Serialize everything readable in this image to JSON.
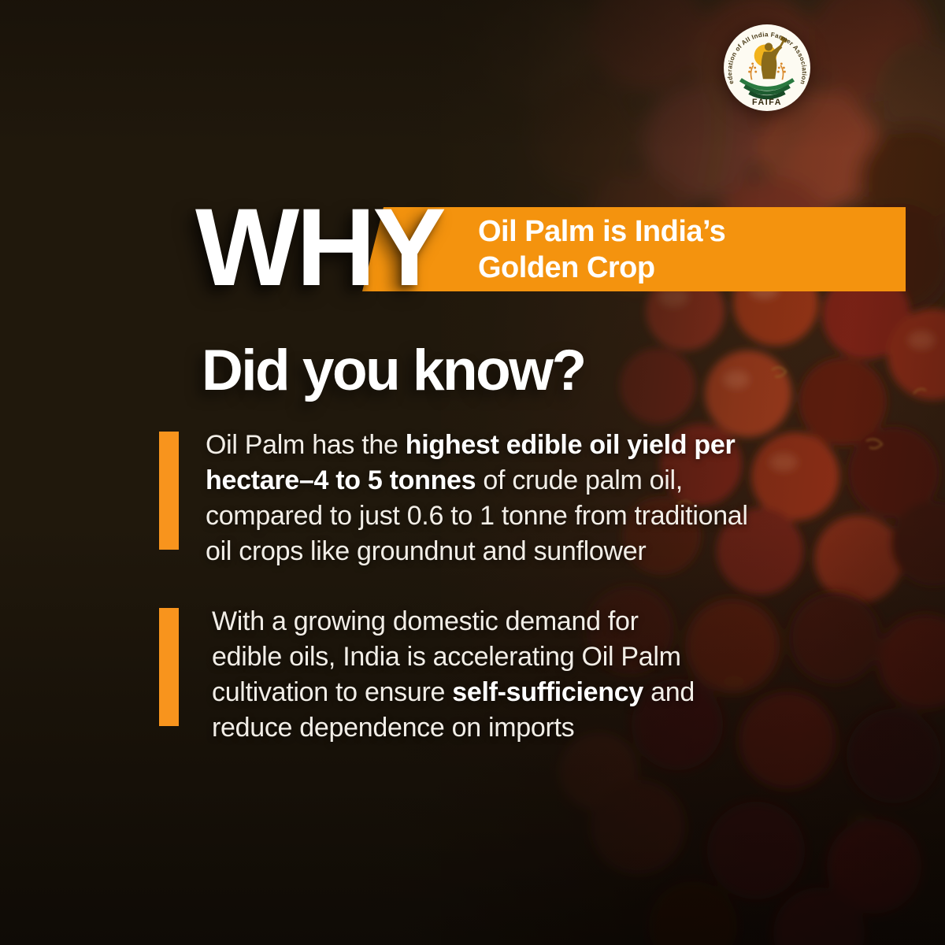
{
  "logo": {
    "arc_text": "Federation of All India Farmer Associations",
    "acronym": "FAIFA"
  },
  "header": {
    "why": "WHY",
    "banner_line1": "Oil Palm is India’s",
    "banner_line2": "Golden Crop"
  },
  "heading": "Did you know?",
  "facts": [
    {
      "lines": [
        [
          {
            "t": "Oil Palm has the ",
            "b": false
          },
          {
            "t": "highest edible oil yield per",
            "b": true
          }
        ],
        [
          {
            "t": "hectare–4 to 5 tonnes",
            "b": true
          },
          {
            "t": " of crude palm oil,",
            "b": false
          }
        ],
        [
          {
            "t": "compared to just 0.6 to 1 tonne from traditional",
            "b": false
          }
        ],
        [
          {
            "t": "oil crops like groundnut and sunflower",
            "b": false
          }
        ]
      ]
    },
    {
      "lines": [
        [
          {
            "t": "With a growing domestic demand for",
            "b": false
          }
        ],
        [
          {
            "t": "edible oils, India is accelerating Oil Palm",
            "b": false
          }
        ],
        [
          {
            "t": "cultivation to ensure ",
            "b": false
          },
          {
            "t": "self-sufficiency",
            "b": true
          },
          {
            "t": " and",
            "b": false
          }
        ],
        [
          {
            "t": "reduce dependence on imports",
            "b": false
          }
        ]
      ]
    }
  ],
  "colors": {
    "accent": "#F4930E",
    "bar": "#F8941D",
    "background": "#1E150A",
    "text": "#F2EEE7"
  }
}
